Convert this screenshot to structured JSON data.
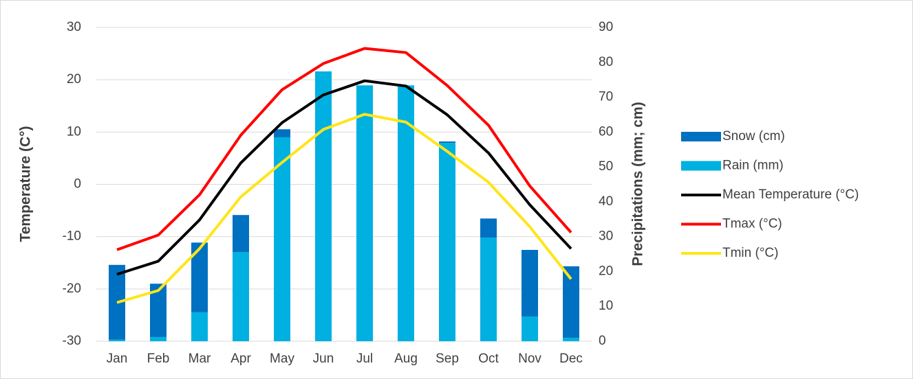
{
  "chart_data": {
    "type": "combo",
    "y_label": "Temperature (C°)",
    "y2_label": "Precipitations (mm; cm)",
    "categories": [
      "Jan",
      "Feb",
      "Mar",
      "Apr",
      "May",
      "Jun",
      "Jul",
      "Aug",
      "Sep",
      "Oct",
      "Nov",
      "Dec"
    ],
    "series": [
      {
        "name": "Snow (cm)",
        "type": "bar",
        "axis": "y2",
        "color": "#0070c0",
        "values": [
          21.4,
          15.3,
          20.0,
          10.6,
          2.3,
          0,
          0,
          0,
          0.4,
          5.5,
          19.1,
          20.5
        ]
      },
      {
        "name": "Rain (mm)",
        "type": "bar",
        "axis": "y2",
        "color": "#00b0e0",
        "values": [
          0.5,
          1.2,
          8.3,
          25.6,
          58.5,
          77.4,
          73.4,
          73.4,
          56.9,
          29.7,
          7.1,
          1.0
        ]
      },
      {
        "name": "Mean Temperature (°C)",
        "type": "line",
        "color": "#000000",
        "values": [
          -17.2,
          -14.7,
          -6.8,
          4.1,
          11.8,
          17.1,
          19.8,
          18.8,
          13.3,
          6.0,
          -3.9,
          -12.3
        ]
      },
      {
        "name": "Tmax (°C)",
        "type": "line",
        "color": "#ff0000",
        "values": [
          -12.5,
          -9.7,
          -2.0,
          9.4,
          18.1,
          23.1,
          26.0,
          25.2,
          18.9,
          11.3,
          -0.3,
          -9.2
        ]
      },
      {
        "name": "Tmin (°C)",
        "type": "line",
        "color": "#ffe51a",
        "values": [
          -22.6,
          -20.3,
          -12.3,
          -2.4,
          4.2,
          10.5,
          13.4,
          11.9,
          6.3,
          0.4,
          -8.1,
          -18.1
        ]
      }
    ],
    "ylim": [
      -30,
      30
    ],
    "yticks": [
      -30,
      -20,
      -10,
      0,
      10,
      20,
      30
    ],
    "y2lim": [
      0,
      90
    ],
    "y2ticks": [
      0,
      10,
      20,
      30,
      40,
      50,
      60,
      70,
      80,
      90
    ],
    "grid": true,
    "legend": "right",
    "stacked": true
  }
}
